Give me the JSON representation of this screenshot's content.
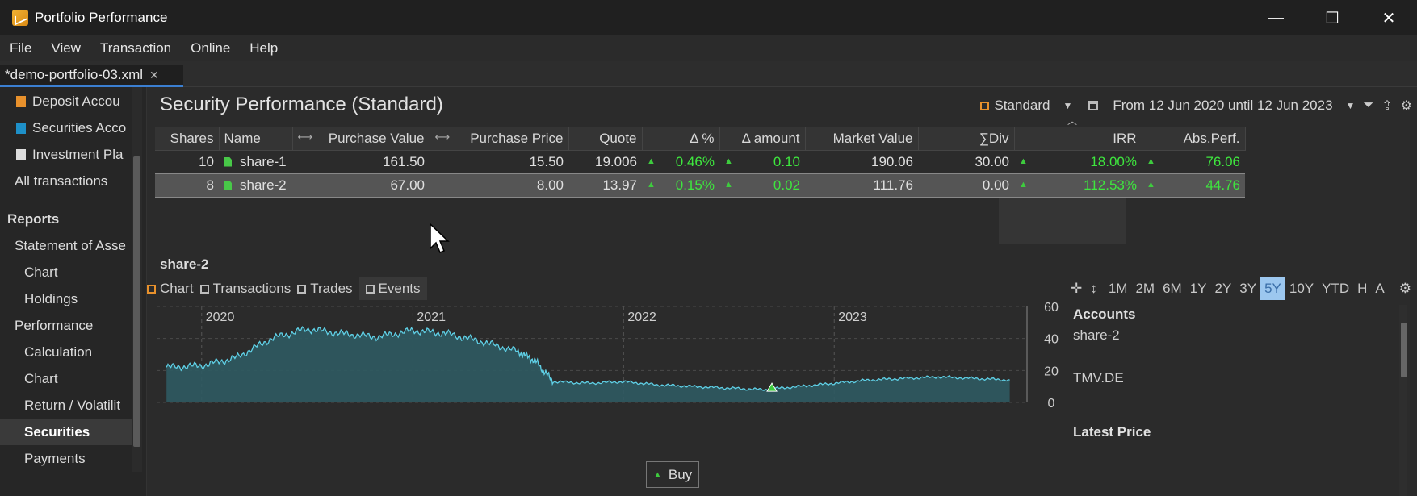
{
  "window": {
    "title": "Portfolio Performance",
    "minimize": "—",
    "maximize": "☐",
    "close": "✕"
  },
  "menu": [
    "File",
    "View",
    "Transaction",
    "Online",
    "Help"
  ],
  "tab": {
    "label": "*demo-portfolio-03.xml",
    "close": "✕"
  },
  "sidebar": {
    "items": [
      {
        "label": "Deposit Accou",
        "color": "#e8912c"
      },
      {
        "label": "Securities Acco",
        "color": "#1e90c8"
      },
      {
        "label": "Investment Pla",
        "color": "#dddddd"
      },
      {
        "label": "All transactions"
      }
    ],
    "reports_heading": "Reports",
    "reports": [
      {
        "label": "Statement of Asse",
        "level": 1
      },
      {
        "label": "Chart",
        "level": 2
      },
      {
        "label": "Holdings",
        "level": 2
      },
      {
        "label": "Performance",
        "level": 1
      },
      {
        "label": "Calculation",
        "level": 2
      },
      {
        "label": "Chart",
        "level": 2
      },
      {
        "label": "Return / Volatilit",
        "level": 2
      },
      {
        "label": "Securities",
        "level": 1,
        "selected": true
      },
      {
        "label": "Payments",
        "level": 2
      }
    ]
  },
  "view": {
    "title": "Security Performance (Standard)",
    "preset": "Standard",
    "period": "From 12 Jun 2020 until 12 Jun 2023"
  },
  "table": {
    "columns": [
      "Shares",
      "Name",
      "Purchase Value",
      "Purchase Price",
      "Quote",
      "Δ %",
      "Δ amount",
      "Market Value",
      "∑Div",
      "IRR",
      "Abs.Perf."
    ],
    "rows": [
      {
        "shares": "10",
        "name": "share-1",
        "purchase_value": "161.50",
        "purchase_price": "15.50",
        "quote": "19.006",
        "delta_pct": "0.46%",
        "delta_amount": "0.10",
        "market_value": "190.06",
        "div": "30.00",
        "irr": "18.00%",
        "abs_perf": "76.06"
      },
      {
        "shares": "8",
        "name": "share-2",
        "purchase_value": "67.00",
        "purchase_price": "8.00",
        "quote": "13.97",
        "delta_pct": "0.15%",
        "delta_amount": "0.02",
        "market_value": "111.76",
        "div": "0.00",
        "irr": "112.53%",
        "abs_perf": "44.76",
        "selected": true
      }
    ]
  },
  "detail": {
    "title": "share-2",
    "tabs": [
      "Chart",
      "Transactions",
      "Trades",
      "Events"
    ],
    "ranges": [
      "1M",
      "2M",
      "6M",
      "1Y",
      "2Y",
      "3Y",
      "5Y",
      "10Y",
      "YTD",
      "H",
      "A"
    ],
    "active_range": "5Y",
    "legend_heading": "Accounts",
    "legend_items": [
      "share-2",
      "TMV.DE"
    ],
    "latest_price_heading": "Latest Price",
    "buy_label": "Buy"
  },
  "chart_data": {
    "type": "area",
    "x_labels": [
      "2020",
      "2021",
      "2022",
      "2023"
    ],
    "y_ticks": [
      0,
      20,
      40,
      60
    ],
    "ylim": [
      0,
      60
    ],
    "series": [
      {
        "x": [
          "2019-11",
          "2020-01",
          "2020-03",
          "2020-05",
          "2020-07",
          "2020-09",
          "2020-11",
          "2021-01",
          "2021-03",
          "2021-05",
          "2021-07",
          "2021-08",
          "2021-09",
          "2021-11",
          "2022-01",
          "2022-03",
          "2022-05",
          "2022-07",
          "2022-09",
          "2022-11",
          "2023-01",
          "2023-03",
          "2023-05",
          "2023-07",
          "2023-09",
          "2023-11"
        ],
        "values": [
          22,
          23,
          28,
          40,
          46,
          43,
          41,
          45,
          43,
          38,
          32,
          26,
          13,
          12,
          13,
          11,
          10,
          9,
          8,
          10,
          12,
          14,
          15,
          16,
          15,
          14
        ]
      }
    ],
    "markers": [
      {
        "x": "2022-09",
        "label": "Buy"
      }
    ],
    "colors": {
      "line": "#5fd0e6",
      "fill": "#2f5a62"
    }
  }
}
